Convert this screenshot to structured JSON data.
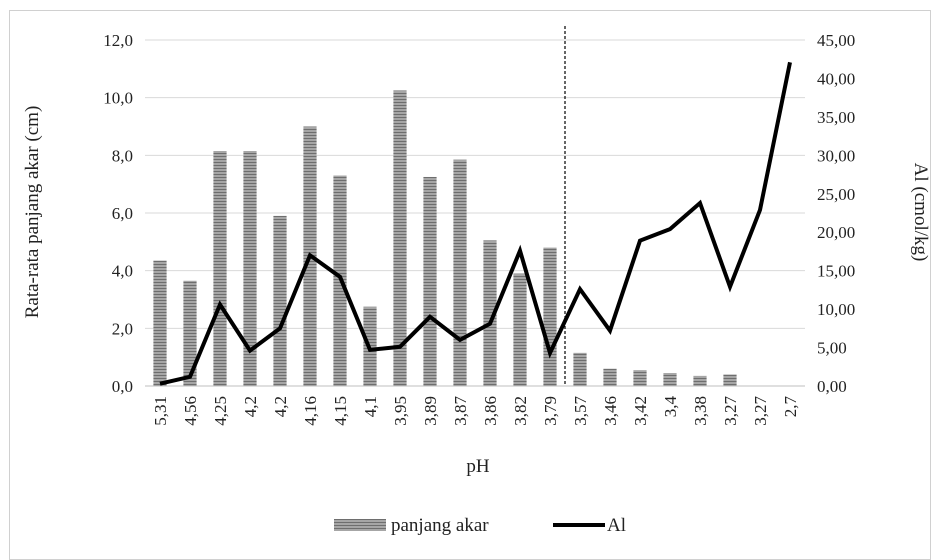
{
  "chart_data": {
    "type": "bar",
    "categories": [
      "5,31",
      "4,56",
      "4,25",
      "4,2",
      "4,2",
      "4,16",
      "4,15",
      "4,1",
      "3,95",
      "3,89",
      "3,87",
      "3,86",
      "3,82",
      "3,79",
      "3,57",
      "3,46",
      "3,42",
      "3,4",
      "3,38",
      "3,27",
      "3,27",
      "2,7"
    ],
    "series": [
      {
        "name": "panjang akar",
        "type": "bar",
        "axis": "left",
        "values": [
          4.35,
          3.65,
          8.15,
          8.15,
          5.9,
          9.0,
          7.3,
          2.75,
          10.25,
          7.25,
          7.85,
          5.05,
          3.9,
          4.8,
          1.15,
          0.6,
          0.55,
          0.45,
          0.35,
          0.4,
          0,
          0
        ]
      },
      {
        "name": "Al",
        "type": "line",
        "axis": "right",
        "values": [
          0.3,
          1.2,
          10.6,
          4.6,
          7.5,
          17.0,
          14.2,
          4.7,
          5.1,
          9.0,
          6.0,
          8.1,
          17.6,
          4.3,
          12.6,
          7.2,
          18.9,
          20.4,
          23.8,
          12.9,
          22.9,
          42.1
        ]
      }
    ],
    "xlabel": "pH",
    "ylabel": "Rata-rata panjang akar (cm)",
    "y2label": "Al (cmol/kg)",
    "ylim": [
      0,
      12
    ],
    "y2lim": [
      0,
      45
    ],
    "yticks": [
      "0,0",
      "2,0",
      "4,0",
      "6,0",
      "8,0",
      "10,0",
      "12,0"
    ],
    "y2ticks": [
      "0,00",
      "5,00",
      "10,00",
      "15,00",
      "20,00",
      "25,00",
      "30,00",
      "35,00",
      "40,00",
      "45,00"
    ],
    "grid": true,
    "divider_after_category": 13,
    "legend_position": "bottom",
    "colors": {
      "bar": "#8c8c8c",
      "line": "#000000",
      "grid": "#d9d9d9"
    }
  }
}
